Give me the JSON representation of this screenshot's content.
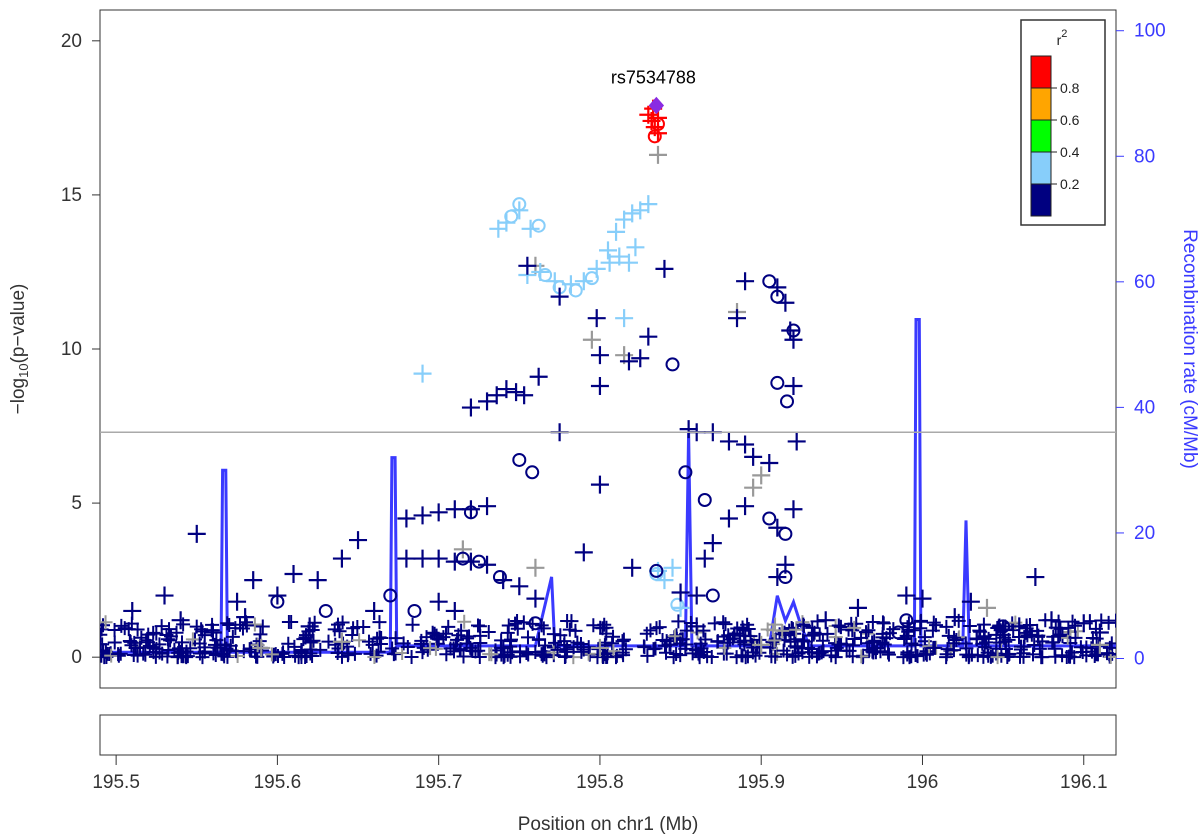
{
  "chart_data": {
    "type": "scatter",
    "title": "",
    "xlabel": "Position on chr1 (Mb)",
    "ylabel_left": "−log",
    "ylabel_left_sub": "10",
    "ylabel_left_tail": "(p−value)",
    "ylabel_right": "Recombination rate (cM/Mb)",
    "xlim": [
      195.49,
      196.12
    ],
    "ylim": [
      -1,
      21
    ],
    "y2lim": [
      -4.7,
      103.3
    ],
    "x_ticks": [
      195.5,
      195.6,
      195.7,
      195.8,
      195.9,
      196.0,
      196.1
    ],
    "x_tick_labels": [
      "195.5",
      "195.6",
      "195.7",
      "195.8",
      "195.9",
      "196",
      "196.1"
    ],
    "y_ticks": [
      0,
      5,
      10,
      15,
      20
    ],
    "y_tick_labels": [
      "0",
      "5",
      "10",
      "15",
      "20"
    ],
    "y2_ticks": [
      0,
      20,
      40,
      60,
      80,
      100
    ],
    "y2_tick_labels": [
      "0",
      "20",
      "40",
      "60",
      "80",
      "100"
    ],
    "significance_line": 7.3,
    "lead_snp": {
      "label": "rs7534788",
      "x": 195.835,
      "y": 17.9,
      "color": "#8a2be2"
    },
    "legend": {
      "title": "r",
      "title_sup": "2",
      "placement": "top-right",
      "bins": [
        {
          "color": "#ff0000",
          "label": "0.8"
        },
        {
          "color": "#ffa500",
          "label": "0.6"
        },
        {
          "color": "#00ff00",
          "label": "0.4"
        },
        {
          "color": "#87cefa",
          "label": "0.2"
        },
        {
          "color": "#000080",
          "label": ""
        }
      ]
    },
    "colors": {
      "very_high": "#ff0000",
      "moderate": "#87cefa",
      "low": "#000080",
      "none": "#999999",
      "recomb": "#3a3aff",
      "sigline": "#aaaaaa"
    },
    "recombination": [
      [
        195.49,
        1
      ],
      [
        195.565,
        1
      ],
      [
        195.566,
        30
      ],
      [
        195.568,
        30
      ],
      [
        195.569,
        1
      ],
      [
        195.67,
        1
      ],
      [
        195.671,
        32
      ],
      [
        195.673,
        32
      ],
      [
        195.674,
        2
      ],
      [
        195.76,
        2
      ],
      [
        195.77,
        13
      ],
      [
        195.772,
        2
      ],
      [
        195.853,
        2
      ],
      [
        195.855,
        36
      ],
      [
        195.857,
        2
      ],
      [
        195.905,
        2
      ],
      [
        195.91,
        10
      ],
      [
        195.915,
        6
      ],
      [
        195.92,
        9
      ],
      [
        195.925,
        5
      ],
      [
        195.93,
        2
      ],
      [
        195.995,
        2
      ],
      [
        195.996,
        54
      ],
      [
        195.998,
        54
      ],
      [
        195.999,
        2
      ],
      [
        196.025,
        2
      ],
      [
        196.027,
        22
      ],
      [
        196.029,
        2
      ],
      [
        196.12,
        2
      ]
    ],
    "series": [
      {
        "name": "",
        "color": "#ff0000",
        "marker": "plus",
        "points": [
          [
            195.83,
            17.6
          ],
          [
            195.832,
            17.4
          ],
          [
            195.834,
            17.2
          ],
          [
            195.836,
            17.0
          ],
          [
            195.833,
            17.8
          ],
          [
            195.836,
            17.5
          ]
        ]
      },
      {
        "name": "",
        "color": "#ff0000",
        "marker": "circle",
        "points": [
          [
            195.834,
            16.9
          ],
          [
            195.836,
            17.3
          ]
        ]
      },
      {
        "name": "",
        "color": "#999999",
        "marker": "plus",
        "points": [
          [
            195.836,
            16.3
          ],
          [
            195.76,
            12.7
          ],
          [
            195.795,
            10.3
          ],
          [
            195.815,
            9.8
          ],
          [
            195.885,
            11.2
          ],
          [
            195.895,
            5.5
          ],
          [
            195.9,
            5.9
          ],
          [
            195.76,
            2.9
          ],
          [
            195.59,
            0.3
          ],
          [
            195.64,
            0.5
          ],
          [
            195.9,
            0.4
          ],
          [
            196.04,
            1.6
          ],
          [
            196.11,
            0.4
          ],
          [
            195.715,
            3.5
          ],
          [
            195.8,
            0.3
          ]
        ]
      },
      {
        "name": "",
        "color": "#87cefa",
        "marker": "plus",
        "points": [
          [
            195.737,
            13.9
          ],
          [
            195.742,
            14.1
          ],
          [
            195.75,
            14.5
          ],
          [
            195.757,
            13.9
          ],
          [
            195.755,
            12.4
          ],
          [
            195.763,
            12.5
          ],
          [
            195.772,
            12.2
          ],
          [
            195.782,
            12.1
          ],
          [
            195.79,
            12.2
          ],
          [
            195.798,
            12.6
          ],
          [
            195.805,
            13.2
          ],
          [
            195.81,
            13.8
          ],
          [
            195.815,
            14.2
          ],
          [
            195.82,
            14.4
          ],
          [
            195.825,
            14.5
          ],
          [
            195.83,
            14.7
          ],
          [
            195.806,
            12.8
          ],
          [
            195.812,
            13.0
          ],
          [
            195.818,
            12.8
          ],
          [
            195.822,
            13.3
          ],
          [
            195.815,
            11.0
          ],
          [
            195.69,
            9.2
          ],
          [
            195.836,
            2.8
          ],
          [
            195.84,
            2.5
          ],
          [
            195.845,
            2.9
          ],
          [
            195.85,
            1.6
          ]
        ]
      },
      {
        "name": "",
        "color": "#87cefa",
        "marker": "circle",
        "points": [
          [
            195.745,
            14.3
          ],
          [
            195.75,
            14.7
          ],
          [
            195.762,
            14.0
          ],
          [
            195.766,
            12.4
          ],
          [
            195.775,
            12.0
          ],
          [
            195.785,
            11.9
          ],
          [
            195.795,
            12.3
          ],
          [
            195.835,
            2.7
          ],
          [
            195.848,
            1.7
          ]
        ]
      },
      {
        "name": "",
        "color": "#000080",
        "marker": "plus",
        "points": [
          [
            195.84,
            12.6
          ],
          [
            195.775,
            11.7
          ],
          [
            195.798,
            11.0
          ],
          [
            195.8,
            9.8
          ],
          [
            195.8,
            8.8
          ],
          [
            195.818,
            9.6
          ],
          [
            195.825,
            9.7
          ],
          [
            195.83,
            10.4
          ],
          [
            195.762,
            9.1
          ],
          [
            195.8,
            5.6
          ],
          [
            195.755,
            12.7
          ],
          [
            195.775,
            7.3
          ],
          [
            195.72,
            8.1
          ],
          [
            195.73,
            8.3
          ],
          [
            195.736,
            8.5
          ],
          [
            195.742,
            8.7
          ],
          [
            195.748,
            8.6
          ],
          [
            195.753,
            8.5
          ],
          [
            195.68,
            4.5
          ],
          [
            195.69,
            4.6
          ],
          [
            195.7,
            4.7
          ],
          [
            195.71,
            4.8
          ],
          [
            195.72,
            4.8
          ],
          [
            195.73,
            4.9
          ],
          [
            195.68,
            3.2
          ],
          [
            195.69,
            3.2
          ],
          [
            195.7,
            3.2
          ],
          [
            195.71,
            3.1
          ],
          [
            195.72,
            3.1
          ],
          [
            195.73,
            3.0
          ],
          [
            195.74,
            2.5
          ],
          [
            195.75,
            2.3
          ],
          [
            195.855,
            7.4
          ],
          [
            195.86,
            7.3
          ],
          [
            195.87,
            7.3
          ],
          [
            195.88,
            7.0
          ],
          [
            195.89,
            6.9
          ],
          [
            195.895,
            6.5
          ],
          [
            195.905,
            6.3
          ],
          [
            195.91,
            12.0
          ],
          [
            195.915,
            11.5
          ],
          [
            195.918,
            10.6
          ],
          [
            195.92,
            10.3
          ],
          [
            195.89,
            12.2
          ],
          [
            195.885,
            11.0
          ],
          [
            195.92,
            8.8
          ],
          [
            195.922,
            7.0
          ],
          [
            195.92,
            4.8
          ],
          [
            195.91,
            4.2
          ],
          [
            195.915,
            3.0
          ],
          [
            195.91,
            2.6
          ],
          [
            195.85,
            2.1
          ],
          [
            195.86,
            2.0
          ],
          [
            195.865,
            3.2
          ],
          [
            195.87,
            3.7
          ],
          [
            195.88,
            4.5
          ],
          [
            195.89,
            4.9
          ],
          [
            195.55,
            4.0
          ],
          [
            195.65,
            3.8
          ],
          [
            195.64,
            3.2
          ],
          [
            195.625,
            2.5
          ],
          [
            195.585,
            2.5
          ],
          [
            195.575,
            1.8
          ],
          [
            195.6,
            2.0
          ],
          [
            195.61,
            2.7
          ],
          [
            195.53,
            2.0
          ],
          [
            195.51,
            1.5
          ],
          [
            196.07,
            2.6
          ],
          [
            195.99,
            2.0
          ],
          [
            196.0,
            1.9
          ],
          [
            196.03,
            1.8
          ],
          [
            196.11,
            0.8
          ],
          [
            196.08,
            1.2
          ],
          [
            196.05,
            0.9
          ],
          [
            195.54,
            1.2
          ],
          [
            195.56,
            0.8
          ],
          [
            195.58,
            1.3
          ],
          [
            195.62,
            1.0
          ],
          [
            195.66,
            1.5
          ],
          [
            195.7,
            1.8
          ],
          [
            195.71,
            1.5
          ],
          [
            195.76,
            1.9
          ],
          [
            195.79,
            3.4
          ],
          [
            195.82,
            2.9
          ],
          [
            195.86,
            1.0
          ],
          [
            195.94,
            1.2
          ],
          [
            195.96,
            1.6
          ],
          [
            196.02,
            1.3
          ],
          [
            196.06,
            1.0
          ],
          [
            196.1,
            1.1
          ]
        ]
      },
      {
        "name": "",
        "color": "#000080",
        "marker": "circle",
        "points": [
          [
            195.845,
            9.5
          ],
          [
            195.905,
            12.2
          ],
          [
            195.91,
            11.7
          ],
          [
            195.91,
            8.9
          ],
          [
            195.916,
            8.3
          ],
          [
            195.92,
            10.6
          ],
          [
            195.75,
            6.4
          ],
          [
            195.758,
            6.0
          ],
          [
            195.853,
            6.0
          ],
          [
            195.865,
            5.1
          ],
          [
            195.905,
            4.5
          ],
          [
            195.915,
            4.0
          ],
          [
            195.915,
            2.6
          ],
          [
            195.835,
            2.8
          ],
          [
            195.76,
            1.1
          ],
          [
            195.738,
            2.6
          ],
          [
            195.725,
            3.1
          ],
          [
            195.72,
            4.7
          ],
          [
            195.715,
            3.2
          ],
          [
            195.685,
            1.5
          ],
          [
            195.67,
            2.0
          ],
          [
            195.6,
            1.8
          ],
          [
            195.63,
            1.5
          ],
          [
            195.99,
            1.2
          ],
          [
            195.985,
            0.8
          ],
          [
            196.05,
            1.0
          ],
          [
            195.87,
            2.0
          ]
        ]
      }
    ],
    "background_band": {
      "color": "#000080",
      "y_min": 0,
      "y_max": 1.2
    }
  }
}
